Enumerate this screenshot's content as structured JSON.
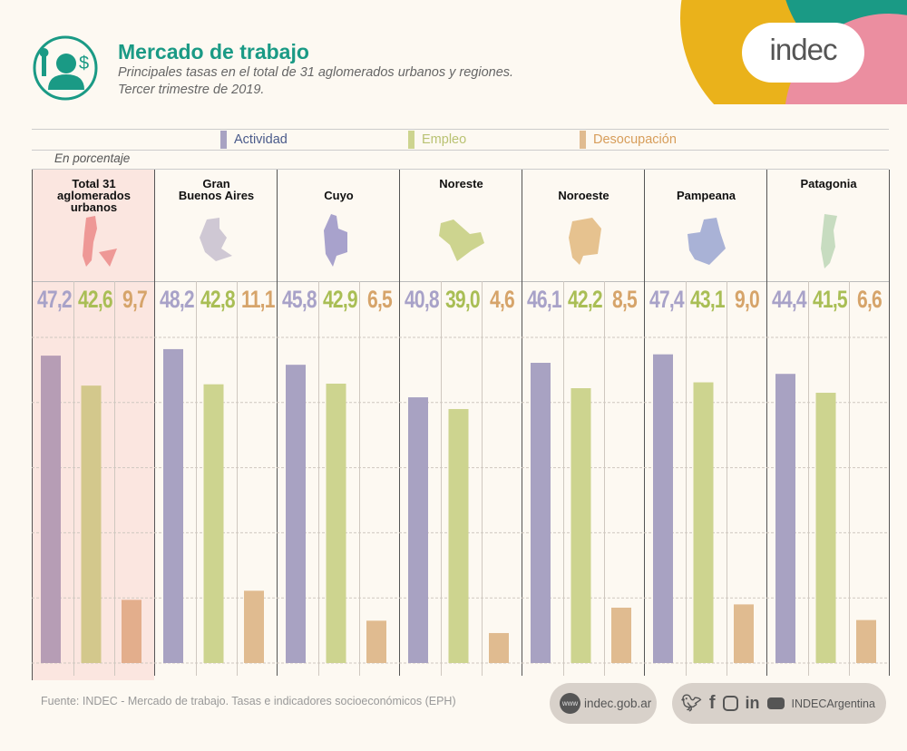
{
  "header": {
    "title": "Mercado de trabajo",
    "subtitle_line1": "Principales tasas en el total de 31 aglomerados urbanos y regiones.",
    "subtitle_line2": "Tercer trimestre de 2019.",
    "logo_text": "indec"
  },
  "legend": [
    {
      "label": "Actividad",
      "color": "#a8a2c2",
      "text_color": "#4a5a8a"
    },
    {
      "label": "Empleo",
      "color": "#cdd48f",
      "text_color": "#b9c272"
    },
    {
      "label": "Desocupación",
      "color": "#e0bb90",
      "text_color": "#d79d5a"
    }
  ],
  "unit_label": "En porcentaje",
  "chart_data": {
    "type": "bar",
    "title": "Mercado de trabajo",
    "ylabel": "En porcentaje",
    "ylim": [
      0,
      50
    ],
    "grid": true,
    "legend_position": "top",
    "categories": [
      "Total 31 aglomerados urbanos",
      "Gran Buenos Aires",
      "Cuyo",
      "Noreste",
      "Noroeste",
      "Pampeana",
      "Patagonia"
    ],
    "series": [
      {
        "name": "Actividad",
        "values": [
          47.2,
          48.2,
          45.8,
          40.8,
          46.1,
          47.4,
          44.4
        ],
        "labels": [
          "47,2",
          "48,2",
          "45,8",
          "40,8",
          "46,1",
          "47,4",
          "44,4"
        ]
      },
      {
        "name": "Empleo",
        "values": [
          42.6,
          42.8,
          42.9,
          39.0,
          42.2,
          43.1,
          41.5
        ],
        "labels": [
          "42,6",
          "42,8",
          "42,9",
          "39,0",
          "42,2",
          "43,1",
          "41,5"
        ]
      },
      {
        "name": "Desocupación",
        "values": [
          9.7,
          11.1,
          6.5,
          4.6,
          8.5,
          9.0,
          6.6
        ],
        "labels": [
          "9,7",
          "11,1",
          "6,5",
          "4,6",
          "8,5",
          "9,0",
          "6,6"
        ]
      }
    ]
  },
  "regions": [
    {
      "line1": "Total 31",
      "line2": "aglomerados",
      "line3": "urbanos",
      "map_color": "#ee9896"
    },
    {
      "line1": "Gran",
      "line2": "Buenos Aires",
      "line3": "",
      "map_color": "#cfc8d4"
    },
    {
      "line1": "",
      "line2": "Cuyo",
      "line3": "",
      "map_color": "#a8a2cc"
    },
    {
      "line1": "Noreste",
      "line2": "",
      "line3": "",
      "map_color": "#cdd48f"
    },
    {
      "line1": "",
      "line2": "Noroeste",
      "line3": "",
      "map_color": "#e6c28f"
    },
    {
      "line1": "",
      "line2": "Pampeana",
      "line3": "",
      "map_color": "#a9b2d6"
    },
    {
      "line1": "Patagonia",
      "line2": "",
      "line3": "",
      "map_color": "#c7dcc0"
    }
  ],
  "footer": {
    "source": "Fuente: INDEC - Mercado de trabajo. Tasas e indicadores socioeconómicos (EPH)",
    "www": "www",
    "website": "indec.gob.ar",
    "social_handle": "INDECArgentina"
  },
  "colors": {
    "teal": "#1a9a85",
    "total_bg": "#fbe6e0",
    "total_bars": [
      "#b69db5",
      "#d3c88c",
      "#e3ae8c"
    ]
  }
}
